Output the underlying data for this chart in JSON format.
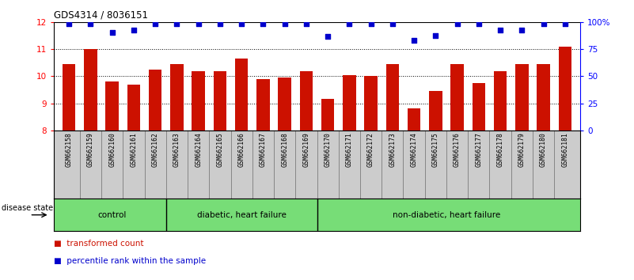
{
  "title": "GDS4314 / 8036151",
  "samples": [
    "GSM662158",
    "GSM662159",
    "GSM662160",
    "GSM662161",
    "GSM662162",
    "GSM662163",
    "GSM662164",
    "GSM662165",
    "GSM662166",
    "GSM662167",
    "GSM662168",
    "GSM662169",
    "GSM662170",
    "GSM662171",
    "GSM662172",
    "GSM662173",
    "GSM662174",
    "GSM662175",
    "GSM662176",
    "GSM662177",
    "GSM662178",
    "GSM662179",
    "GSM662180",
    "GSM662181"
  ],
  "bar_values": [
    10.45,
    11.0,
    9.8,
    9.7,
    10.25,
    10.45,
    10.2,
    10.2,
    10.65,
    9.9,
    9.95,
    10.2,
    9.15,
    10.05,
    10.02,
    10.45,
    8.8,
    9.45,
    10.45,
    9.75,
    10.2,
    10.45,
    10.45,
    11.1
  ],
  "percentile_values": [
    99,
    99,
    91,
    93,
    99,
    99,
    99,
    99,
    99,
    99,
    99,
    99,
    87,
    99,
    99,
    99,
    83,
    88,
    99,
    99,
    93,
    93,
    99,
    99
  ],
  "group_boundaries": [
    0,
    5,
    12,
    24
  ],
  "group_labels": [
    "control",
    "diabetic, heart failure",
    "non-diabetic, heart failure"
  ],
  "ylim_left": [
    8,
    12
  ],
  "ylim_right": [
    0,
    100
  ],
  "yticks_left": [
    8,
    9,
    10,
    11,
    12
  ],
  "yticks_right": [
    0,
    25,
    50,
    75,
    100
  ],
  "bar_color": "#cc1100",
  "dot_color": "#0000cc",
  "bg_color": "#ffffff",
  "label_area_color": "#cccccc",
  "group_color": "#77dd77",
  "legend_bar_label": "transformed count",
  "legend_dot_label": "percentile rank within the sample",
  "disease_state_label": "disease state"
}
